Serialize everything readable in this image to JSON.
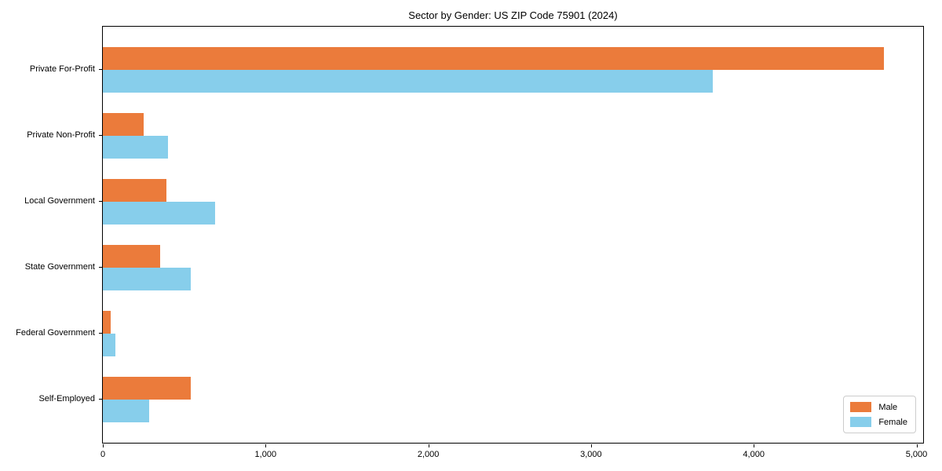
{
  "chart_data": {
    "type": "bar",
    "orientation": "horizontal",
    "title": "Sector by Gender: US ZIP Code 75901 (2024)",
    "categories": [
      "Private For-Profit",
      "Private Non-Profit",
      "Local Government",
      "State Government",
      "Federal Government",
      "Self-Employed"
    ],
    "series": [
      {
        "name": "Male",
        "color": "#EB7B3B",
        "values": [
          4800,
          250,
          390,
          350,
          50,
          540
        ]
      },
      {
        "name": "Female",
        "color": "#87CEEB",
        "values": [
          3750,
          400,
          690,
          540,
          75,
          285
        ]
      }
    ],
    "xlabel": "",
    "ylabel": "",
    "xlim": [
      0,
      5000
    ],
    "xticks": [
      {
        "value": 0,
        "label": "0"
      },
      {
        "value": 1000,
        "label": "1,000"
      },
      {
        "value": 2000,
        "label": "2,000"
      },
      {
        "value": 3000,
        "label": "3,000"
      },
      {
        "value": 4000,
        "label": "4,000"
      },
      {
        "value": 5000,
        "label": "5,000"
      }
    ],
    "grid": false,
    "legend": {
      "position": "lower right"
    }
  }
}
